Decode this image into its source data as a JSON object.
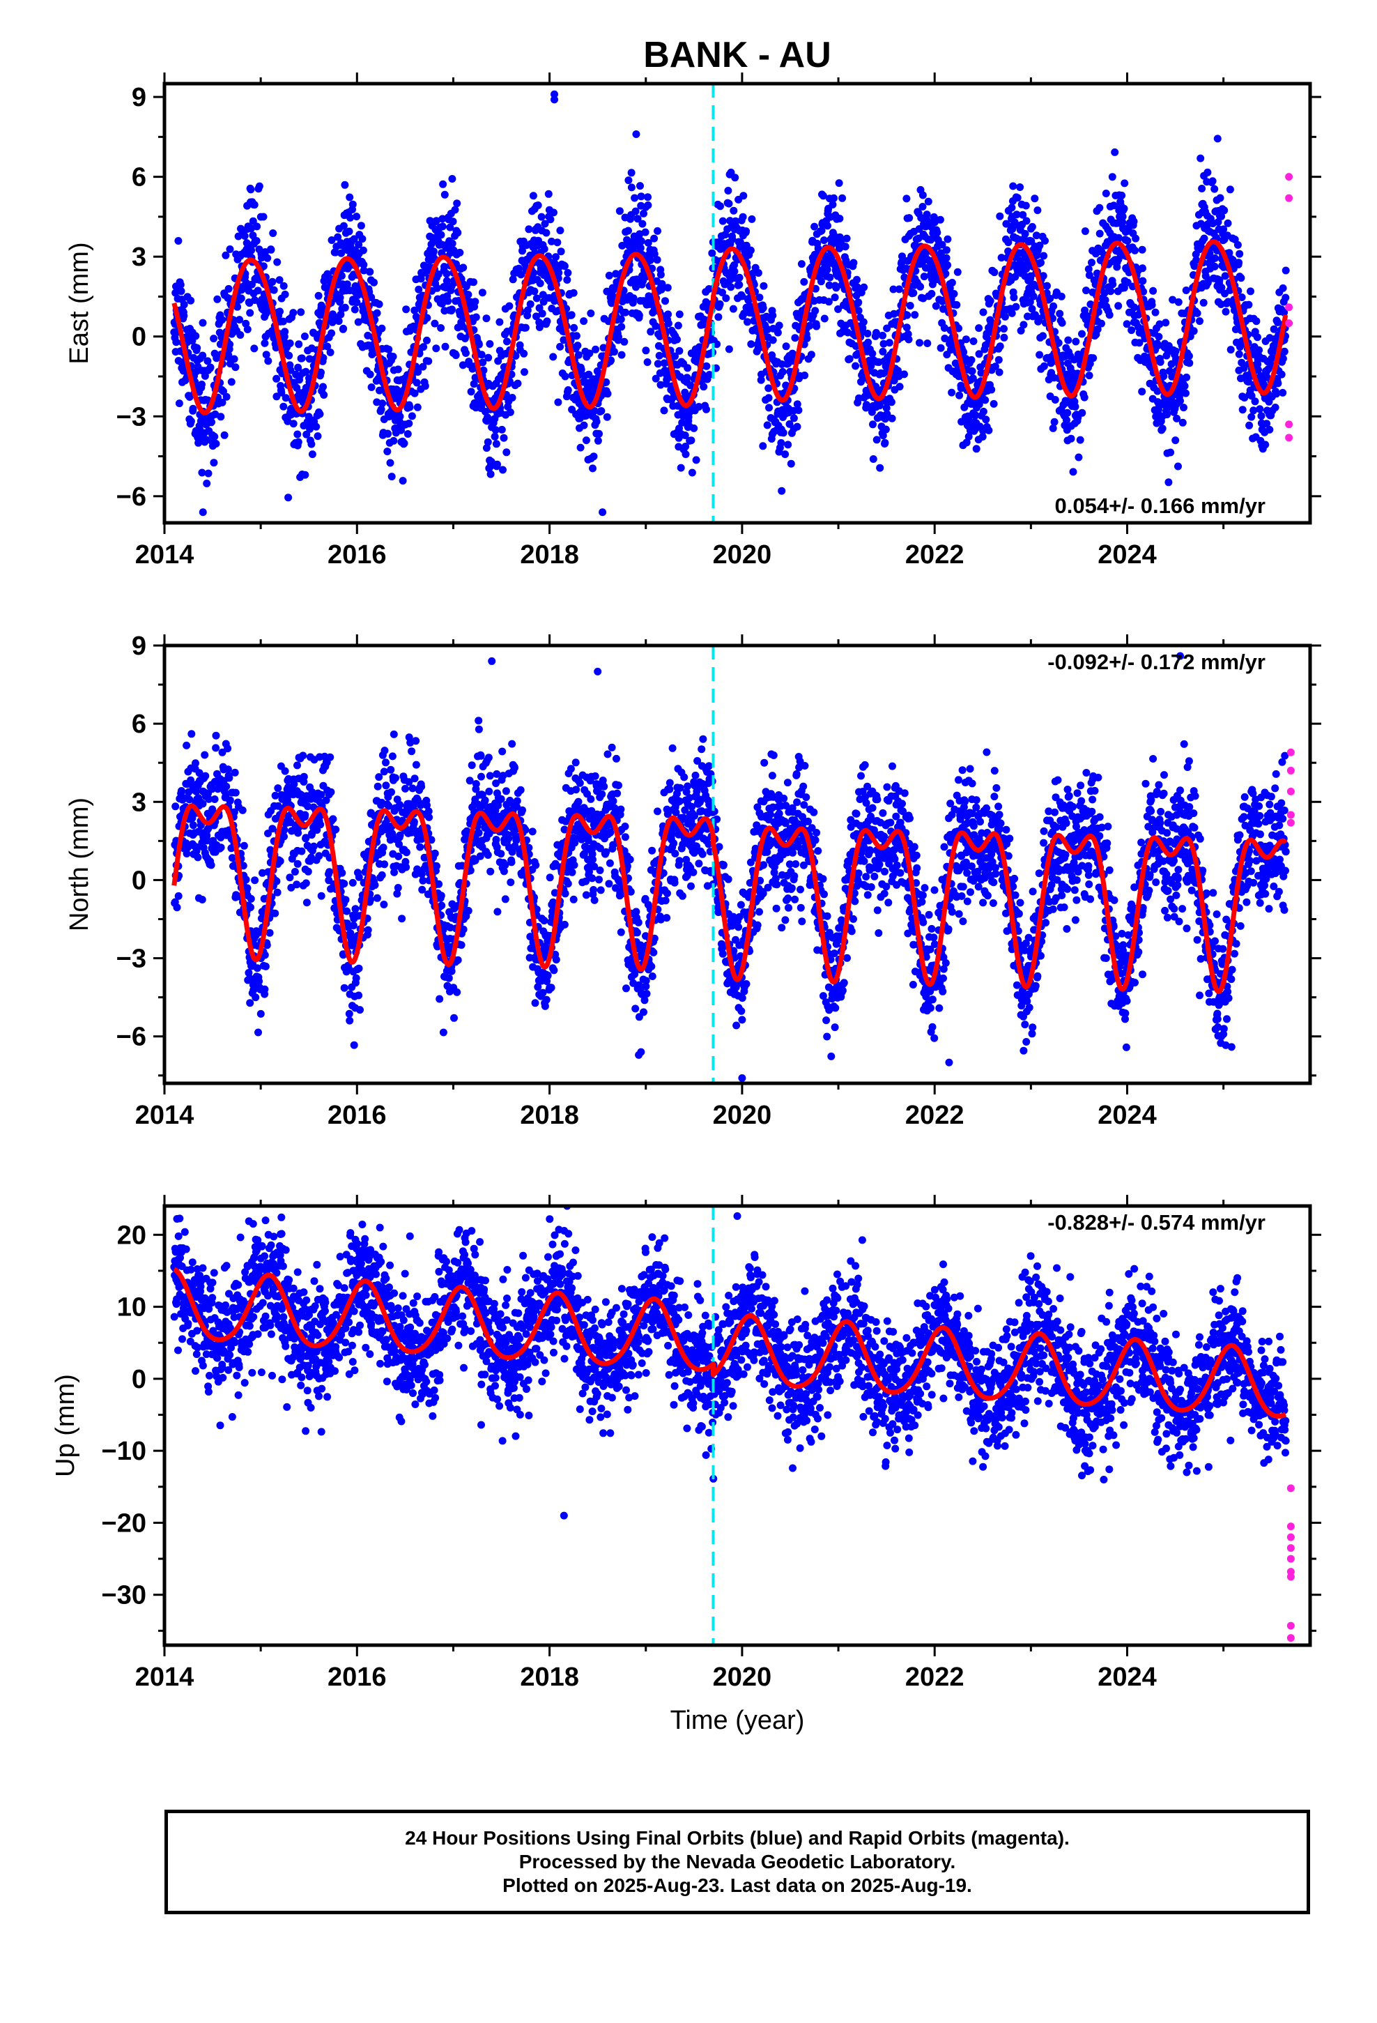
{
  "title": "BANK - AU",
  "colors": {
    "final_orbits": "#0000ff",
    "rapid_orbits": "#ff22dd",
    "model": "#ff0000",
    "event_line": "#00e5ee"
  },
  "chart_data": [
    {
      "type": "scatter",
      "ylabel": "East (mm)",
      "xlabel": "",
      "xlim": [
        2014.0,
        2025.9
      ],
      "ylim": [
        -7.0,
        9.5
      ],
      "xticks": [
        2014,
        2016,
        2018,
        2020,
        2022,
        2024
      ],
      "yticks": [
        -6,
        -3,
        0,
        3,
        6,
        9
      ],
      "event_line_x": 2019.7,
      "rate_label": "0.054+/- 0.166 mm/yr",
      "rate_label_position": "bottom-right",
      "model": {
        "start": 2014.1,
        "end": 2025.65,
        "mean": 0.45,
        "trend": 0.054,
        "annual_amp": 2.85,
        "annual_peak": 0.91,
        "semi_amp": 0.2,
        "semi_phase": 0.2,
        "offset_at": 2019.7,
        "offset": 0.15
      },
      "series": [
        {
          "role": "final",
          "noise": 1.25,
          "seed": 11,
          "outliers": [
            [
              2018.05,
              9.1
            ],
            [
              2018.05,
              8.9
            ],
            [
              2018.9,
              7.6
            ],
            [
              2018.55,
              -6.6
            ],
            [
              2014.4,
              -6.6
            ]
          ]
        },
        {
          "role": "rapid",
          "points": [
            [
              2025.68,
              6.0
            ],
            [
              2025.68,
              5.2
            ],
            [
              2025.68,
              1.1
            ],
            [
              2025.68,
              0.5
            ],
            [
              2025.68,
              -3.3
            ],
            [
              2025.68,
              -3.8
            ]
          ]
        }
      ]
    },
    {
      "type": "scatter",
      "ylabel": "North (mm)",
      "xlabel": "",
      "xlim": [
        2014.0,
        2025.9
      ],
      "ylim": [
        -7.8,
        9.0
      ],
      "xticks": [
        2014,
        2016,
        2018,
        2020,
        2022,
        2024
      ],
      "yticks": [
        -6,
        -3,
        0,
        3,
        6,
        9
      ],
      "event_line_x": 2019.7,
      "rate_label": "-0.092+/- 0.172 mm/yr",
      "rate_label_position": "top-right",
      "model": {
        "start": 2014.1,
        "end": 2025.65,
        "mean": 0.4,
        "trend": -0.092,
        "annual_amp": 2.6,
        "annual_peak": 0.45,
        "semi_amp": 1.3,
        "semi_phase": 0.2,
        "offset_at": 2019.7,
        "offset": -0.3
      },
      "series": [
        {
          "role": "final",
          "noise": 1.2,
          "seed": 23,
          "outliers": [
            [
              2017.4,
              8.4
            ],
            [
              2018.5,
              8.0
            ],
            [
              2024.55,
              8.6
            ],
            [
              2020.0,
              -7.6
            ],
            [
              2018.95,
              -6.6
            ],
            [
              2022.15,
              -7.0
            ]
          ]
        },
        {
          "role": "rapid",
          "points": [
            [
              2025.7,
              4.9
            ],
            [
              2025.7,
              4.2
            ],
            [
              2025.7,
              3.4
            ],
            [
              2025.7,
              2.5
            ],
            [
              2025.7,
              2.2
            ]
          ]
        }
      ]
    },
    {
      "type": "scatter",
      "ylabel": "Up (mm)",
      "xlabel": "Time (year)",
      "xlim": [
        2014.0,
        2025.9
      ],
      "ylim": [
        -37.0,
        24.0
      ],
      "xticks": [
        2014,
        2016,
        2018,
        2020,
        2022,
        2024
      ],
      "yticks": [
        -30,
        -20,
        -10,
        0,
        10,
        20
      ],
      "event_line_x": 2019.7,
      "rate_label": "-0.828+/- 0.574 mm/yr",
      "rate_label_position": "top-right",
      "model": {
        "start": 2014.1,
        "end": 2025.65,
        "mean": 5.3,
        "trend": -0.828,
        "annual_amp": 4.7,
        "annual_peak": 0.08,
        "semi_amp": 0.6,
        "semi_phase": 0.1,
        "offset_at": 2019.7,
        "offset": -1.5
      },
      "series": [
        {
          "role": "final",
          "noise": 4.3,
          "seed": 37,
          "outliers": [
            [
              2015.05,
              22.0
            ],
            [
              2019.95,
              22.6
            ],
            [
              2018.15,
              -19.0
            ],
            [
              2016.55,
              19.8
            ]
          ]
        },
        {
          "role": "rapid",
          "points": [
            [
              2025.7,
              -15.2
            ],
            [
              2025.7,
              -20.5
            ],
            [
              2025.7,
              -22.0
            ],
            [
              2025.7,
              -23.5
            ],
            [
              2025.7,
              -25.0
            ],
            [
              2025.7,
              -26.8
            ],
            [
              2025.7,
              -27.5
            ],
            [
              2025.7,
              -34.3
            ],
            [
              2025.7,
              -36.0
            ]
          ]
        }
      ]
    }
  ],
  "caption": {
    "line1": "24 Hour Positions Using Final Orbits (blue) and Rapid Orbits (magenta).",
    "line2": "Processed by the Nevada Geodetic Laboratory.",
    "line3": "Plotted on 2025-Aug-23. Last data on 2025-Aug-19."
  }
}
